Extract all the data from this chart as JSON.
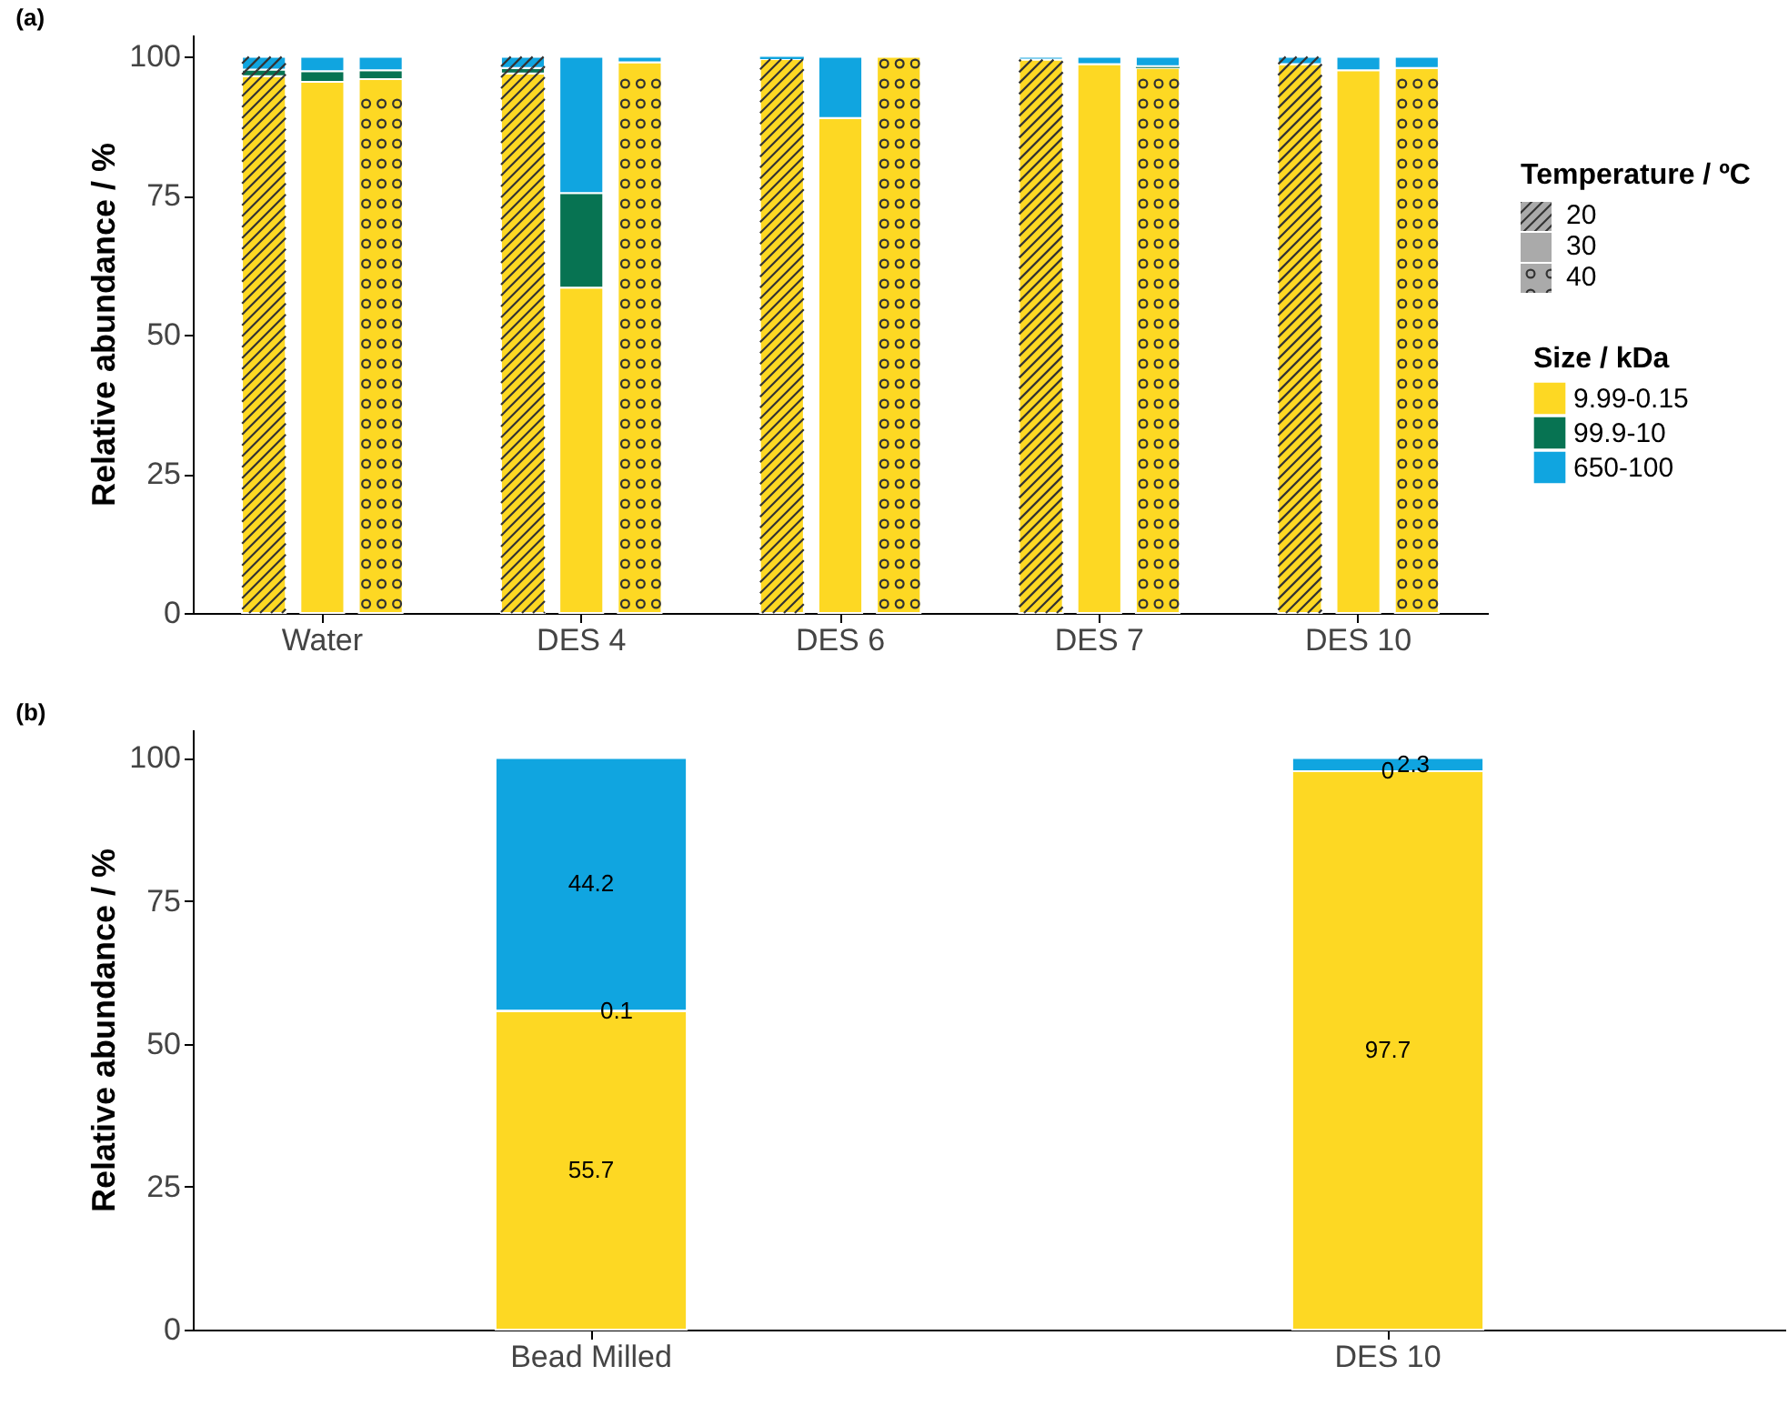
{
  "chart_data": [
    {
      "type": "bar",
      "stacked": true,
      "title": "(a)",
      "ylabel": "Relative abundance / %",
      "categories": [
        null,
        "Water",
        null,
        null,
        "DES 4",
        null,
        null,
        "DES 6",
        null,
        null,
        "DES 7",
        null,
        null,
        "DES 10",
        null
      ],
      "annotations": [
        "Temperature / ºC",
        "20",
        "30",
        "40"
      ],
      "legend_title": "Size / kDa",
      "legend": "right",
      "series": [
        {
          "name": "9.99-0.15",
          "color": "#fdd823",
          "values": [
            96.5,
            95.5,
            96,
            97,
            58.5,
            99,
            99.6,
            89,
            100,
            99.5,
            98.7,
            98,
            98.7,
            97.6,
            98
          ]
        },
        {
          "name": "99.9-10",
          "color": "#077352",
          "values": [
            1.2,
            1.9,
            1.6,
            1,
            17,
            0,
            0,
            0,
            0,
            0,
            0,
            0.3,
            0,
            0,
            0
          ]
        },
        {
          "name": "650-100",
          "color": "#10a5e0",
          "values": [
            2.3,
            2.6,
            2.4,
            2,
            24.5,
            1,
            0.4,
            11,
            0,
            0.5,
            1.3,
            1.7,
            1.3,
            2.4,
            2
          ]
        }
      ],
      "ylim": [
        0,
        104
      ],
      "yticks": [
        0,
        25,
        50,
        75,
        100
      ]
    },
    {
      "type": "bar",
      "stacked": true,
      "title": "(b)",
      "ylabel": "Relative abundance / %",
      "categories": [
        "Bead Milled",
        "DES 10"
      ],
      "data_labels": true,
      "series": [
        {
          "color": "#fdd823",
          "values": [
            55.7,
            97.7
          ]
        },
        {
          "color": "#077352",
          "values": [
            0.1,
            0
          ]
        },
        {
          "color": "#10a5e0",
          "values": [
            44.2,
            2.3
          ]
        }
      ],
      "ylim": [
        0,
        105
      ],
      "yticks": [
        0,
        25,
        50,
        75,
        100
      ]
    }
  ]
}
